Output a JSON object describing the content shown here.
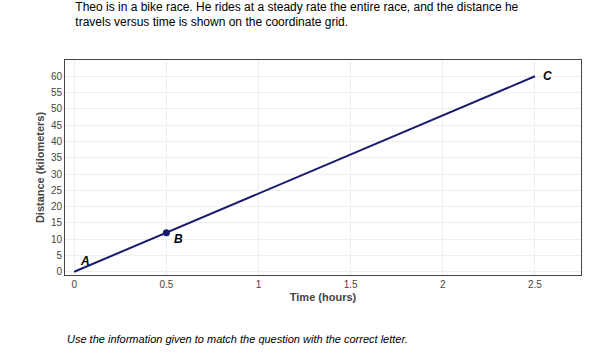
{
  "chart_data": {
    "type": "line",
    "title": "Theo is in a bike race. He rides at a steady rate the entire race, and the distance he travels versus time is shown on the coordinate grid.",
    "footer": "Use the information given to match the question with the correct letter.",
    "x_label": "Time (hours)",
    "y_label": "Distance (kilometers)",
    "x": [
      0,
      2.5
    ],
    "values": [
      0,
      60
    ],
    "color": "#1a1a6e",
    "xlim": [
      -0.05,
      2.75
    ],
    "ylim": [
      -1,
      65
    ],
    "xticks": [
      0,
      0.5,
      1,
      1.5,
      2,
      2.5
    ],
    "yticks": [
      0,
      5,
      10,
      15,
      20,
      25,
      30,
      35,
      40,
      45,
      50,
      55,
      60
    ],
    "grid": true,
    "annotations": [
      {
        "text": "A",
        "x": 0,
        "y": 0
      },
      {
        "text": "B",
        "x": 0.5,
        "y": 12,
        "marker": "circle"
      },
      {
        "text": "C",
        "x": 2.5,
        "y": 60
      }
    ]
  }
}
